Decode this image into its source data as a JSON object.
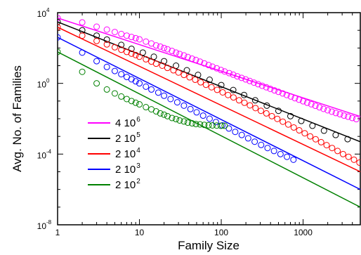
{
  "chart_data": {
    "type": "scatter",
    "xlabel": "Family Size",
    "ylabel": "Avg. No. of Families",
    "xscale": "log",
    "yscale": "log",
    "xlim": [
      1,
      5000
    ],
    "ylim": [
      1e-08,
      10000.0
    ],
    "x_tick_labels": [
      {
        "value": 1,
        "text": "1"
      },
      {
        "value": 10,
        "text": "10"
      },
      {
        "value": 100,
        "text": "100"
      },
      {
        "value": 1000,
        "text": "1000"
      }
    ],
    "y_tick_labels": [
      {
        "value": 1e-08,
        "base": "10",
        "exp": "-8"
      },
      {
        "value": 0.0001,
        "base": "10",
        "exp": "-4"
      },
      {
        "value": 1,
        "base": "10",
        "exp": "0"
      },
      {
        "value": 10000.0,
        "base": "10",
        "exp": "4"
      }
    ],
    "grid": false,
    "legend_position": "bottom-left",
    "series": [
      {
        "name": "4 10^6",
        "label_base": "4 10",
        "label_exp": "6",
        "color": "#ff00ff",
        "line": {
          "x": [
            1,
            5000
          ],
          "y": [
            5000,
            0.0134
          ]
        },
        "points": {
          "x": [
            1,
            2,
            3,
            4,
            5,
            6,
            7,
            8,
            9,
            10,
            12,
            14,
            16,
            18,
            20,
            22,
            25,
            28,
            31,
            35,
            39,
            44,
            49,
            55,
            62,
            70,
            78,
            88,
            99,
            110,
            125,
            140,
            157,
            177,
            199,
            223,
            251,
            282,
            316,
            355,
            398,
            447,
            501,
            562,
            631,
            708,
            794,
            891,
            1000,
            1122,
            1259,
            1413,
            1585,
            1778,
            1995,
            2239,
            2512,
            2818,
            3162,
            3548,
            3981,
            4467
          ],
          "y": [
            5000,
            2800,
            1600,
            1100,
            800,
            620,
            500,
            420,
            360,
            310,
            230,
            180,
            140,
            120,
            100,
            85,
            68,
            55,
            46,
            38,
            31,
            25,
            21,
            17,
            13.5,
            10.8,
            8.8,
            7.1,
            5.7,
            4.7,
            3.8,
            3.1,
            2.5,
            2.05,
            1.67,
            1.36,
            1.1,
            0.9,
            0.73,
            0.6,
            0.49,
            0.4,
            0.33,
            0.27,
            0.22,
            0.18,
            0.145,
            0.119,
            0.097,
            0.08,
            0.066,
            0.054,
            0.044,
            0.036,
            0.03,
            0.025,
            0.021,
            0.018,
            0.015,
            0.013,
            0.011,
            0.0095
          ]
        }
      },
      {
        "name": "2 10^5",
        "label_base": "2 10",
        "label_exp": "5",
        "color": "#000000",
        "line": {
          "x": [
            1,
            5000
          ],
          "y": [
            3000,
            0.0005
          ]
        },
        "points": {
          "x": [
            1,
            2,
            3,
            4,
            6,
            8,
            11,
            15,
            20,
            28,
            38,
            52,
            72,
            100,
            140,
            190,
            260,
            360,
            500,
            700,
            950,
            1300,
            1800,
            2500,
            3500
          ],
          "y": [
            3000,
            1000,
            500,
            300,
            150,
            90,
            55,
            32,
            18,
            10,
            5.5,
            3,
            1.6,
            0.8,
            0.42,
            0.22,
            0.11,
            0.055,
            0.028,
            0.014,
            0.0075,
            0.004,
            0.0021,
            0.0012,
            0.0007
          ]
        }
      },
      {
        "name": "2 10^4",
        "label_base": "2 10",
        "label_exp": "4",
        "color": "#ff0000",
        "line": {
          "x": [
            1,
            5000
          ],
          "y": [
            1500,
            1e-05
          ]
        },
        "points": {
          "x": [
            1,
            2,
            3,
            4,
            5,
            6,
            7,
            8,
            9,
            10,
            12,
            14,
            16,
            19,
            22,
            26,
            30,
            35,
            41,
            48,
            56,
            65,
            76,
            89,
            104,
            121,
            141,
            165,
            192,
            224,
            262,
            305,
            356,
            415,
            484,
            565,
            659,
            769,
            897,
            1047,
            1221,
            1424,
            1661,
            1938,
            2261,
            2637,
            3076,
            3589,
            4187,
            4884
          ],
          "y": [
            1500,
            500,
            250,
            160,
            110,
            80,
            60,
            48,
            40,
            32,
            23,
            17,
            13,
            10,
            7.5,
            5.5,
            4.1,
            3,
            2.2,
            1.6,
            1.15,
            0.83,
            0.6,
            0.43,
            0.31,
            0.22,
            0.16,
            0.11,
            0.08,
            0.057,
            0.04,
            0.028,
            0.02,
            0.014,
            0.0098,
            0.0068,
            0.0047,
            0.0032,
            0.0022,
            0.0015,
            0.001,
            0.00069,
            0.00047,
            0.00032,
            0.00022,
            0.00015,
            0.0001,
            7e-05,
            4.8e-05,
            3.3e-05
          ]
        }
      },
      {
        "name": "2 10^3",
        "label_base": "2 10",
        "label_exp": "3",
        "color": "#0000ff",
        "line": {
          "x": [
            1,
            5000
          ],
          "y": [
            400,
            1e-06
          ]
        },
        "points": {
          "x": [
            1,
            2,
            3,
            4,
            5,
            6,
            7,
            8,
            9,
            10,
            12,
            14,
            17,
            20,
            24,
            29,
            35,
            42,
            50,
            60,
            72,
            86,
            103,
            124,
            148,
            178,
            213,
            256,
            307,
            368,
            441,
            529,
            635,
            762
          ],
          "y": [
            400,
            55,
            18,
            8.5,
            5,
            3.3,
            2.3,
            1.7,
            1.3,
            1,
            0.65,
            0.45,
            0.3,
            0.2,
            0.13,
            0.085,
            0.055,
            0.035,
            0.023,
            0.015,
            0.01,
            0.0065,
            0.0042,
            0.0028,
            0.0018,
            0.0012,
            0.00078,
            0.0005,
            0.00033,
            0.00022,
            0.00015,
            0.0001,
            7e-05,
            4.8e-05
          ]
        }
      },
      {
        "name": "2 10^2",
        "label_base": "2 10",
        "label_exp": "2",
        "color": "#008000",
        "line": {
          "x": [
            1,
            5000
          ],
          "y": [
            60,
            1e-07
          ]
        },
        "points": {
          "x": [
            1,
            2,
            3,
            4,
            5,
            6,
            7,
            8,
            9,
            10,
            12,
            14,
            16,
            18,
            20,
            22,
            25,
            28,
            31,
            35,
            39,
            44,
            49,
            55,
            62,
            70,
            78,
            88,
            99,
            110
          ],
          "y": [
            60,
            4.5,
            1,
            0.45,
            0.27,
            0.18,
            0.13,
            0.1,
            0.08,
            0.065,
            0.045,
            0.034,
            0.026,
            0.02,
            0.017,
            0.014,
            0.011,
            0.0095,
            0.008,
            0.007,
            0.006,
            0.0055,
            0.005,
            0.0048,
            0.0045,
            0.0043,
            0.0042,
            0.0041,
            0.004,
            0.004
          ]
        }
      }
    ]
  }
}
